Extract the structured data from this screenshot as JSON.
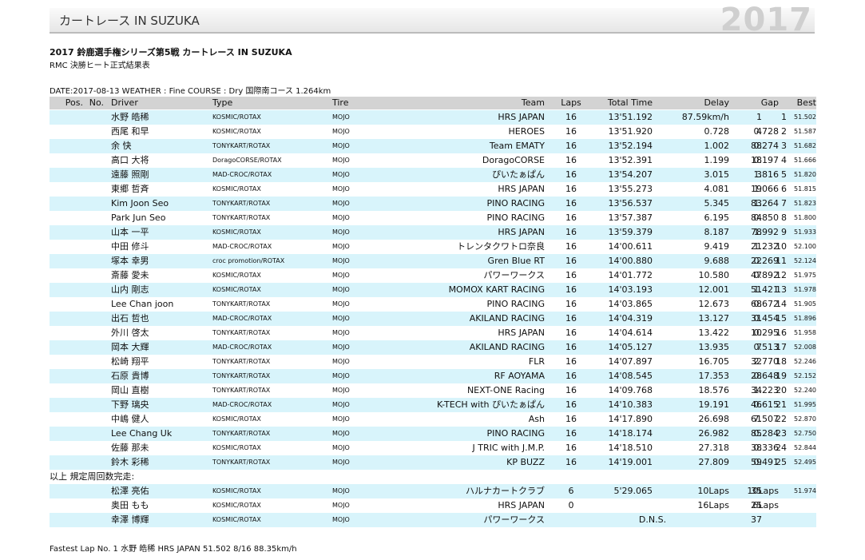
{
  "header": {
    "title": "カートレース IN SUZUKA",
    "year": "2017"
  },
  "event": {
    "title": "2017 鈴鹿選手権シリーズ第5戦 カートレース IN SUZUKA",
    "subtitle": "RMC 決勝ヒート正式結果表",
    "conditions": "DATE:2017-08-13 WEATHER : Fine COURSE : Dry 国際南コース 1.264km"
  },
  "table": {
    "columns": [
      "Pos.",
      "No.",
      "Driver",
      "Type",
      "Tire",
      "Team",
      "Laps",
      "Total Time",
      "Delay",
      "Gap",
      "Best"
    ],
    "rows": [
      [
        "1",
        "1",
        "水野 皓稀",
        "KOSMIC/ROTAX",
        "MOJO",
        "HRS JAPAN",
        "16",
        "13'51.192",
        "87.59km/h",
        null,
        "51.502"
      ],
      [
        "2",
        "4",
        "西尾 和早",
        "KOSMIC/ROTAX",
        "MOJO",
        "HEROES",
        "16",
        "13'51.920",
        "0.728",
        "0.728",
        "51.587"
      ],
      [
        "3",
        "88",
        "余 快",
        "TONYKART/ROTAX",
        "MOJO",
        "Team EMATY",
        "16",
        "13'52.194",
        "1.002",
        "0.274",
        "51.682"
      ],
      [
        "4",
        "18",
        "高口 大将",
        "DoragoCORSE/ROTAX",
        "MOJO",
        "DoragoCORSE",
        "16",
        "13'52.391",
        "1.199",
        "0.197",
        "51.666"
      ],
      [
        "5",
        "3",
        "遠藤 照剛",
        "MAD-CROC/ROTAX",
        "MOJO",
        "ぴいたぁぱん",
        "16",
        "13'54.207",
        "3.015",
        "1.816",
        "51.820"
      ],
      [
        "6",
        "19",
        "東郷 哲斉",
        "KOSMIC/ROTAX",
        "MOJO",
        "HRS JAPAN",
        "16",
        "13'55.273",
        "4.081",
        "1.066",
        "51.815"
      ],
      [
        "7",
        "83",
        "Kim Joon Seo",
        "TONYKART/ROTAX",
        "MOJO",
        "PINO RACING",
        "16",
        "13'56.537",
        "5.345",
        "1.264",
        "51.823"
      ],
      [
        "8",
        "84",
        "Park Jun Seo",
        "TONYKART/ROTAX",
        "MOJO",
        "PINO RACING",
        "16",
        "13'57.387",
        "6.195",
        "0.850",
        "51.800"
      ],
      [
        "9",
        "78",
        "山本 一平",
        "KOSMIC/ROTAX",
        "MOJO",
        "HRS JAPAN",
        "16",
        "13'59.379",
        "8.187",
        "1.992",
        "51.933"
      ],
      [
        "10",
        "21",
        "中田 修斗",
        "MAD-CROC/ROTAX",
        "MOJO",
        "トレンタクワトロ奈良",
        "16",
        "14'00.611",
        "9.419",
        "1.232",
        "52.100"
      ],
      [
        "11",
        "22",
        "塚本 幸男",
        "croc promotion/ROTAX",
        "MOJO",
        "Gren Blue RT",
        "16",
        "14'00.880",
        "9.688",
        "0.269",
        "52.124"
      ],
      [
        "12",
        "47",
        "斎藤 愛未",
        "KOSMIC/ROTAX",
        "MOJO",
        "パワーワークス",
        "16",
        "14'01.772",
        "10.580",
        "0.892",
        "51.975"
      ],
      [
        "13",
        "51",
        "山内 剛志",
        "KOSMIC/ROTAX",
        "MOJO",
        "MOMOX KART RACING",
        "16",
        "14'03.193",
        "12.001",
        "1.421",
        "51.978"
      ],
      [
        "14",
        "68",
        "Lee Chan joon",
        "TONYKART/ROTAX",
        "MOJO",
        "PINO RACING",
        "16",
        "14'03.865",
        "12.673",
        "0.672",
        "51.905"
      ],
      [
        "15",
        "31",
        "出石 哲也",
        "MAD-CROC/ROTAX",
        "MOJO",
        "AKILAND RACING",
        "16",
        "14'04.319",
        "13.127",
        "0.454",
        "51.896"
      ],
      [
        "16",
        "10",
        "外川 啓太",
        "TONYKART/ROTAX",
        "MOJO",
        "HRS JAPAN",
        "16",
        "14'04.614",
        "13.422",
        "0.295",
        "51.958"
      ],
      [
        "17",
        "7",
        "岡本 大輝",
        "MAD-CROC/ROTAX",
        "MOJO",
        "AKILAND RACING",
        "16",
        "14'05.127",
        "13.935",
        "0.513",
        "52.008"
      ],
      [
        "18",
        "32",
        "松崎 翔平",
        "TONYKART/ROTAX",
        "MOJO",
        "FLR",
        "16",
        "14'07.897",
        "16.705",
        "2.770",
        "52.246"
      ],
      [
        "19",
        "28",
        "石原 貴博",
        "TONYKART/ROTAX",
        "MOJO",
        "RF AOYAMA",
        "16",
        "14'08.545",
        "17.353",
        "0.648",
        "52.152"
      ],
      [
        "20",
        "34",
        "岡山 直樹",
        "TONYKART/ROTAX",
        "MOJO",
        "NEXT-ONE Racing",
        "16",
        "14'09.768",
        "18.576",
        "1.223",
        "52.240"
      ],
      [
        "21",
        "46",
        "下野 璃央",
        "MAD-CROC/ROTAX",
        "MOJO",
        "K-TECH with ぴいたぁぱん",
        "16",
        "14'10.383",
        "19.191",
        "0.615",
        "51.995"
      ],
      [
        "22",
        "61",
        "中嶋 健人",
        "KOSMIC/ROTAX",
        "MOJO",
        "Ash",
        "16",
        "14'17.890",
        "26.698",
        "7.507",
        "52.870"
      ],
      [
        "23",
        "85",
        "Lee Chang Uk",
        "TONYKART/ROTAX",
        "MOJO",
        "PINO RACING",
        "16",
        "14'18.174",
        "26.982",
        "0.284",
        "52.750"
      ],
      [
        "24",
        "38",
        "佐藤 那未",
        "KOSMIC/ROTAX",
        "MOJO",
        "J TRIC with J.M.P.",
        "16",
        "14'18.510",
        "27.318",
        "0.336",
        "52.844"
      ],
      [
        "25",
        "59",
        "鈴木 彩稀",
        "TONYKART/ROTAX",
        "MOJO",
        "KP BUZZ",
        "16",
        "14'19.001",
        "27.809",
        "0.491",
        "52.495"
      ]
    ],
    "non_finishers_label": "以上 規定周回数完走:",
    "non_finishers": [
      [
        null,
        "35",
        "松澤 亮佑",
        "KOSMIC/ROTAX",
        "MOJO",
        "ハルナカートクラブ",
        "6",
        "5'29.065",
        "10Laps",
        "10Laps",
        "51.974"
      ],
      [
        null,
        "25",
        "奥田 もも",
        "KOSMIC/ROTAX",
        "MOJO",
        "HRS JAPAN",
        "0",
        null,
        "16Laps",
        "6Laps",
        null
      ],
      [
        null,
        "37",
        "幸澤 博輝",
        "KOSMIC/ROTAX",
        "MOJO",
        "パワーワークス",
        null,
        "D.N.S.",
        null,
        null,
        null
      ]
    ]
  },
  "footer": "Fastest Lap No. 1 水野 皓稀 HRS JAPAN 51.502 8/16 88.35km/h"
}
